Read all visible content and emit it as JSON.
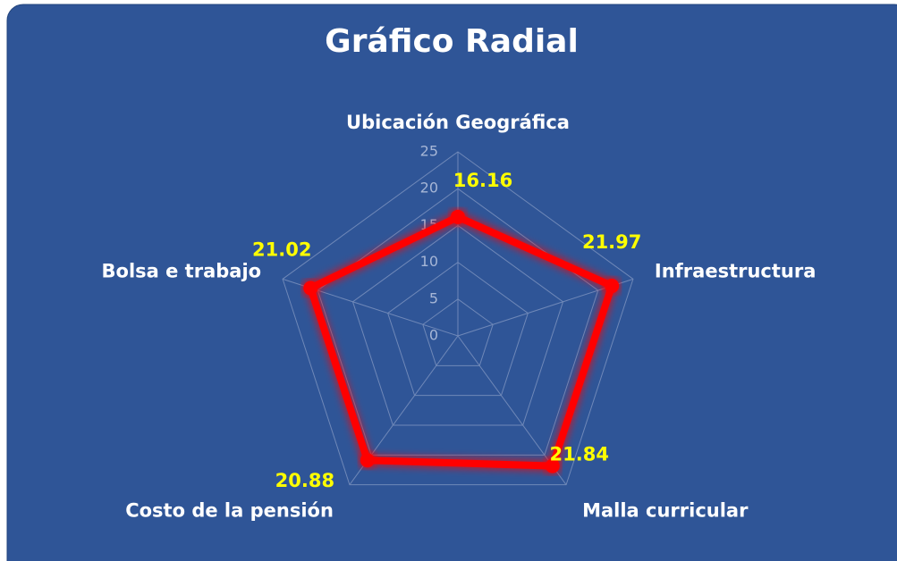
{
  "chart_data": {
    "type": "radar",
    "title": "Gráfico Radial",
    "categories": [
      "Ubicación Geográfica",
      "Infraestructura",
      "Malla curricular",
      "Costo de la pensión",
      "Bolsa e trabajo"
    ],
    "series": [
      {
        "color": "#ff0000",
        "values": [
          16.16,
          21.97,
          21.84,
          20.88,
          21.02
        ]
      }
    ],
    "rlim": [
      0,
      25
    ],
    "rticks": [
      0,
      5,
      10,
      15,
      20,
      25
    ],
    "grid": true
  }
}
